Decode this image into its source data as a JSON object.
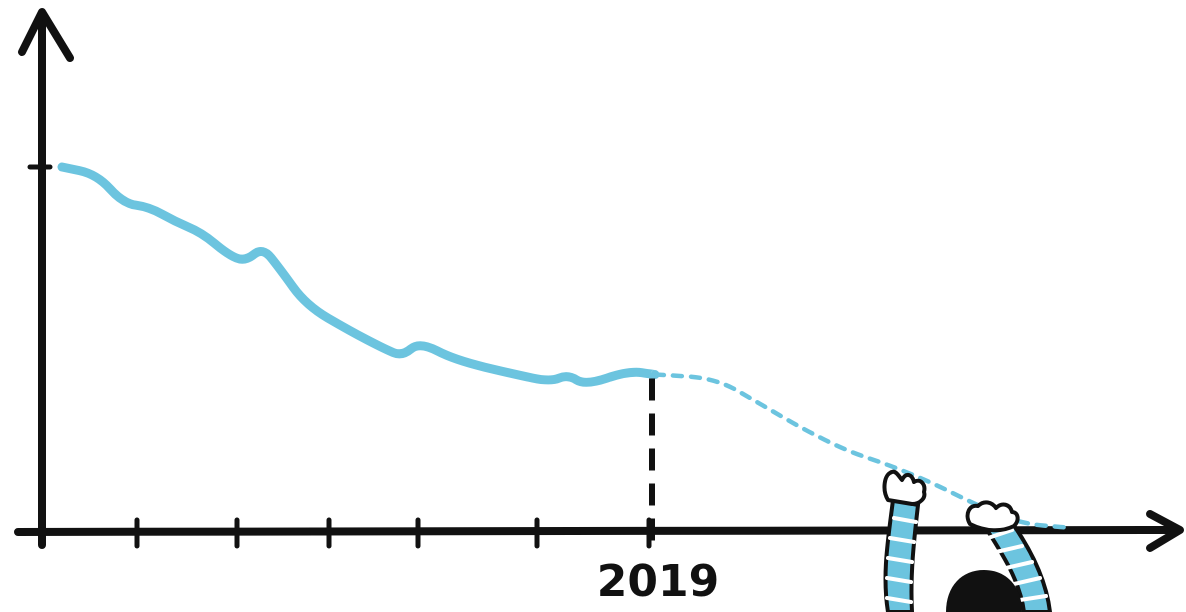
{
  "chart_data": {
    "type": "line",
    "title": "",
    "xlabel": "",
    "ylabel": "",
    "x_tick_labels": [
      "2019"
    ],
    "marker_year": 2019,
    "grid": false,
    "legend": "none",
    "colors": {
      "line": "#6cc4df",
      "axis": "#111111",
      "figure_stripe": "#6cc4df",
      "figure_body": "#111111"
    },
    "series": [
      {
        "style": "solid",
        "points": [
          [
            0.0,
            100
          ],
          [
            0.04,
            98
          ],
          [
            0.07,
            90
          ],
          [
            0.1,
            89
          ],
          [
            0.13,
            85
          ],
          [
            0.16,
            82
          ],
          [
            0.19,
            76
          ],
          [
            0.21,
            74
          ],
          [
            0.23,
            78
          ],
          [
            0.25,
            72
          ],
          [
            0.28,
            62
          ],
          [
            0.33,
            55
          ],
          [
            0.37,
            50
          ],
          [
            0.39,
            48
          ],
          [
            0.41,
            52
          ],
          [
            0.45,
            47
          ],
          [
            0.52,
            43
          ],
          [
            0.56,
            41
          ],
          [
            0.58,
            43
          ],
          [
            0.6,
            40
          ],
          [
            0.65,
            44
          ],
          [
            0.68,
            43
          ]
        ]
      },
      {
        "style": "dotted",
        "points": [
          [
            0.68,
            43
          ],
          [
            0.75,
            42
          ],
          [
            0.8,
            35
          ],
          [
            0.85,
            28
          ],
          [
            0.9,
            22
          ],
          [
            0.95,
            18
          ],
          [
            1.0,
            13
          ],
          [
            1.05,
            7
          ],
          [
            1.1,
            2
          ],
          [
            1.15,
            1
          ]
        ]
      }
    ],
    "x_range": [
      0,
      1.3
    ],
    "y_range": [
      0,
      125
    ]
  },
  "figure": {
    "icon": "person-pushing-icon",
    "description_color": "#6cc4df"
  }
}
